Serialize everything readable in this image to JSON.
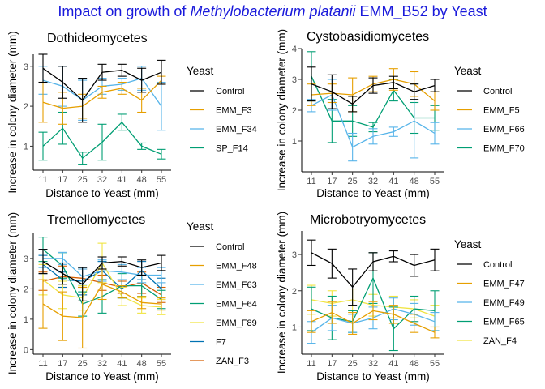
{
  "title": {
    "prefix": "Impact on growth of ",
    "species": "Methylobacterium platanii",
    "suffix": " EMM_B52 by Yeast",
    "color": "#1a1adb"
  },
  "chart_data": [
    {
      "type": "line",
      "title": "Dothideomycetes",
      "xlabel": "Distance to Yeast (mm)",
      "ylabel": "Increase in colony diameter (mm)",
      "legend_title": "Yeast",
      "x": [
        11,
        17,
        25,
        32,
        41,
        48,
        55
      ],
      "ylim": [
        0.4,
        3.3
      ],
      "yticks": [
        1,
        2,
        3
      ],
      "series": [
        {
          "name": "Control",
          "color": "#000000",
          "values": [
            2.95,
            2.6,
            2.15,
            2.85,
            2.9,
            2.65,
            2.85
          ],
          "err": [
            0.35,
            0.4,
            0.55,
            0.2,
            0.15,
            0.3,
            0.3
          ]
        },
        {
          "name": "EMM_F3",
          "color": "#e69f00",
          "values": [
            2.1,
            1.95,
            2.0,
            2.35,
            2.45,
            2.15,
            2.65
          ],
          "err": [
            0.5,
            0.4,
            0.3,
            0.15,
            0.15,
            0.3,
            0.1
          ]
        },
        {
          "name": "EMM_F34",
          "color": "#56b4e9",
          "values": [
            2.65,
            2.5,
            2.15,
            2.5,
            2.55,
            2.7,
            2.0
          ],
          "err": [
            0.35,
            0.5,
            0.5,
            0.2,
            0.15,
            0.3,
            0.6
          ]
        },
        {
          "name": "SP_F14",
          "color": "#009e73",
          "values": [
            1.0,
            1.45,
            0.7,
            1.1,
            1.6,
            1.0,
            0.8
          ],
          "err": [
            0.35,
            0.4,
            0.15,
            0.45,
            0.2,
            0.08,
            0.12
          ]
        }
      ]
    },
    {
      "type": "line",
      "title": "Cystobasidiomycetes",
      "xlabel": "Distance to Yeast (mm)",
      "ylabel": "Increase in colony diameter (mm)",
      "legend_title": "Yeast",
      "x": [
        11,
        17,
        25,
        32,
        41,
        48,
        55
      ],
      "ylim": [
        0,
        4.0
      ],
      "yticks": [
        1,
        2,
        3,
        4
      ],
      "series": [
        {
          "name": "Control",
          "color": "#000000",
          "values": [
            2.85,
            2.6,
            2.2,
            2.8,
            2.9,
            2.6,
            2.8
          ],
          "err": [
            0.55,
            0.55,
            0.25,
            0.25,
            0.2,
            0.25,
            0.2
          ]
        },
        {
          "name": "EMM_F5",
          "color": "#e69f00",
          "values": [
            2.5,
            2.55,
            2.5,
            2.85,
            3.0,
            2.85,
            2.3
          ],
          "err": [
            0.35,
            0.3,
            0.55,
            0.25,
            0.35,
            0.4,
            0.3
          ]
        },
        {
          "name": "EMM_F66",
          "color": "#56b4e9",
          "values": [
            2.15,
            2.5,
            0.8,
            1.15,
            1.3,
            1.65,
            1.25
          ],
          "err": [
            0.2,
            0.5,
            0.45,
            0.25,
            0.15,
            1.2,
            0.35
          ]
        },
        {
          "name": "EMM_F70",
          "color": "#009e73",
          "values": [
            3.1,
            1.65,
            1.65,
            1.45,
            2.65,
            1.75,
            1.75
          ],
          "err": [
            0.8,
            0.7,
            0.5,
            0.15,
            0.35,
            0.5,
            0.4
          ]
        }
      ]
    },
    {
      "type": "line",
      "title": "Tremellomycetes",
      "xlabel": "Distance to Yeast (mm)",
      "ylabel": "Increase in colony diameter (mm)",
      "legend_title": "Yeast",
      "x": [
        11,
        17,
        25,
        32,
        41,
        48,
        55
      ],
      "ylim": [
        -0.15,
        3.85
      ],
      "yticks": [
        0,
        1,
        2,
        3
      ],
      "series": [
        {
          "name": "Control",
          "color": "#000000",
          "values": [
            2.9,
            2.5,
            2.15,
            2.85,
            2.9,
            2.7,
            2.85
          ],
          "err": [
            0.4,
            0.35,
            0.55,
            0.2,
            0.15,
            0.25,
            0.25
          ]
        },
        {
          "name": "EMM_F48",
          "color": "#e69f00",
          "values": [
            1.5,
            1.1,
            1.05,
            2.15,
            1.9,
            1.55,
            1.5
          ],
          "err": [
            0.8,
            0.8,
            1.0,
            0.5,
            0.2,
            0.2,
            0.2
          ]
        },
        {
          "name": "EMM_F63",
          "color": "#56b4e9",
          "values": [
            3.0,
            3.0,
            2.4,
            2.6,
            2.55,
            2.45,
            2.45
          ],
          "err": [
            0.3,
            0.2,
            0.25,
            0.35,
            0.25,
            0.25,
            0.25
          ]
        },
        {
          "name": "EMM_F64",
          "color": "#009e73",
          "values": [
            3.3,
            2.75,
            1.5,
            1.75,
            2.1,
            2.1,
            1.65
          ],
          "err": [
            0.4,
            0.4,
            0.4,
            0.55,
            0.4,
            0.35,
            0.3
          ]
        },
        {
          "name": "EMM_F89",
          "color": "#f0e442",
          "values": [
            2.3,
            1.8,
            1.7,
            2.85,
            1.75,
            1.45,
            1.4
          ],
          "err": [
            0.5,
            0.45,
            0.4,
            0.65,
            0.3,
            0.25,
            0.25
          ]
        },
        {
          "name": "F7",
          "color": "#0072b2",
          "values": [
            2.8,
            2.3,
            2.25,
            2.6,
            2.0,
            2.6,
            2.0
          ],
          "err": [
            0.3,
            0.25,
            0.45,
            0.3,
            0.3,
            0.3,
            0.35
          ]
        },
        {
          "name": "ZAN_F3",
          "color": "#d55e00",
          "values": [
            2.25,
            2.4,
            2.35,
            2.2,
            2.05,
            2.2,
            1.8
          ],
          "err": [
            0.3,
            0.35,
            0.3,
            0.25,
            0.2,
            0.35,
            0.25
          ]
        }
      ]
    },
    {
      "type": "line",
      "title": "Microbotryomycetes",
      "xlabel": "Distance to Yeast (mm)",
      "ylabel": "Increase in colony diameter (mm)",
      "legend_title": "Yeast",
      "x": [
        11,
        17,
        25,
        32,
        41,
        48,
        55
      ],
      "ylim": [
        0.25,
        3.65
      ],
      "yticks": [
        1,
        2,
        3
      ],
      "series": [
        {
          "name": "Control",
          "color": "#000000",
          "values": [
            3.05,
            2.75,
            2.1,
            2.8,
            2.95,
            2.7,
            2.85
          ],
          "err": [
            0.35,
            0.4,
            0.5,
            0.25,
            0.15,
            0.3,
            0.3
          ]
        },
        {
          "name": "EMM_F47",
          "color": "#e69f00",
          "values": [
            1.15,
            1.4,
            1.1,
            1.45,
            1.35,
            1.1,
            0.85
          ],
          "err": [
            0.3,
            0.3,
            0.3,
            0.25,
            0.25,
            0.25,
            0.15
          ]
        },
        {
          "name": "EMM_F49",
          "color": "#56b4e9",
          "values": [
            0.85,
            1.25,
            1.1,
            1.25,
            1.5,
            1.35,
            1.15
          ],
          "err": [
            0.3,
            0.35,
            0.25,
            0.3,
            0.3,
            0.3,
            0.25
          ]
        },
        {
          "name": "EMM_F65",
          "color": "#009e73",
          "values": [
            1.5,
            1.25,
            1.15,
            2.35,
            0.95,
            1.5,
            1.45
          ],
          "err": [
            0.6,
            0.6,
            0.3,
            0.7,
            0.6,
            0.35,
            0.55
          ]
        },
        {
          "name": "ZAN_F4",
          "color": "#f0e442",
          "values": [
            1.75,
            1.65,
            1.75,
            1.6,
            1.55,
            1.5,
            1.3
          ],
          "err": [
            0.4,
            0.35,
            0.3,
            0.3,
            0.3,
            0.25,
            0.3
          ]
        }
      ]
    }
  ]
}
